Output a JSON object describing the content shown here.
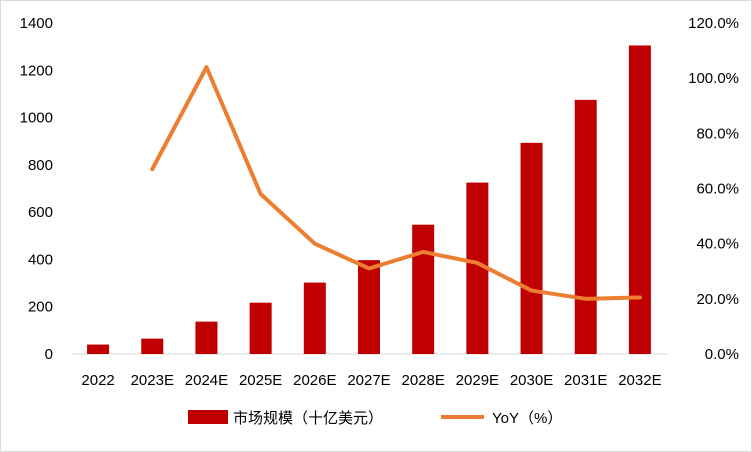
{
  "chart_data": {
    "type": "bar",
    "title": "",
    "xlabel": "",
    "ylabel": "",
    "categories": [
      "2022",
      "2023E",
      "2024E",
      "2025E",
      "2026E",
      "2027E",
      "2028E",
      "2029E",
      "2030E",
      "2031E",
      "2032E"
    ],
    "series": [
      {
        "name": "市场规模（十亿美元）",
        "type": "bar",
        "axis": "left",
        "color": "#C00000",
        "values": [
          40,
          65,
          137,
          217,
          302,
          397,
          547,
          725,
          893,
          1075,
          1305
        ]
      },
      {
        "name": "YoY（%）",
        "type": "line",
        "axis": "right",
        "color": "#ED7D31",
        "values": [
          null,
          67,
          104,
          58,
          40,
          31,
          37,
          33,
          23,
          20,
          20.5
        ]
      }
    ],
    "y_left": {
      "ylim": [
        0,
        1400
      ],
      "ticks": [
        "0",
        "200",
        "400",
        "600",
        "800",
        "1000",
        "1200",
        "1400"
      ]
    },
    "y_right": {
      "ylim": [
        0,
        120
      ],
      "ticks": [
        "0.0%",
        "20.0%",
        "40.0%",
        "60.0%",
        "80.0%",
        "100.0%",
        "120.0%"
      ]
    },
    "grid": false,
    "legend_position": "bottom"
  }
}
